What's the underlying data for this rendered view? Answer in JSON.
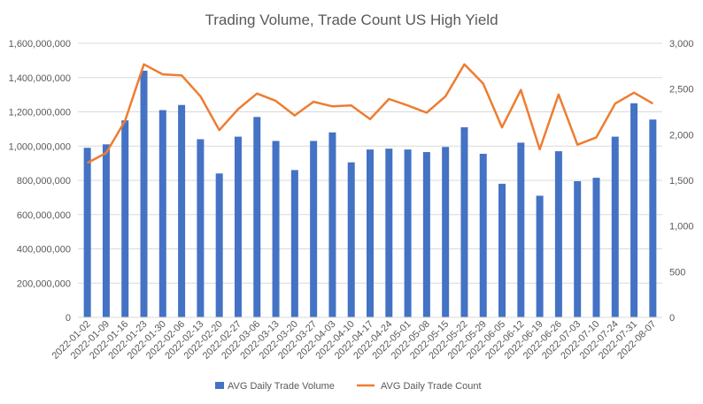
{
  "chart_data": {
    "type": "bar+line",
    "title": "Trading Volume, Trade Count US High Yield",
    "categories": [
      "2022-01-02",
      "2022-01-09",
      "2022-01-16",
      "2022-01-23",
      "2022-01-30",
      "2022-02-06",
      "2022-02-13",
      "2022-02-20",
      "2022-02-27",
      "2022-03-06",
      "2022-03-13",
      "2022-03-20",
      "2022-03-27",
      "2022-04-03",
      "2022-04-10",
      "2022-04-17",
      "2022-04-24",
      "2022-05-01",
      "2022-05-08",
      "2022-05-15",
      "2022-05-22",
      "2022-05-29",
      "2022-06-05",
      "2022-06-12",
      "2022-06-19",
      "2022-06-26",
      "2022-07-03",
      "2022-07-10",
      "2022-07-24",
      "2022-07-31",
      "2022-08-07"
    ],
    "series": [
      {
        "name": "AVG Daily Trade Volume",
        "type": "bar",
        "axis": "left",
        "color": "#4472C4",
        "values": [
          990000000,
          1010000000,
          1150000000,
          1440000000,
          1210000000,
          1240000000,
          1040000000,
          840000000,
          1055000000,
          1170000000,
          1030000000,
          860000000,
          1030000000,
          1080000000,
          905000000,
          980000000,
          985000000,
          980000000,
          965000000,
          995000000,
          1110000000,
          955000000,
          780000000,
          1020000000,
          710000000,
          970000000,
          795000000,
          815000000,
          1055000000,
          1250000000,
          1155000000
        ]
      },
      {
        "name": "AVG Daily Trade Count",
        "type": "line",
        "axis": "right",
        "color": "#ED7D31",
        "values": [
          1690,
          1800,
          2150,
          2770,
          2660,
          2650,
          2420,
          2050,
          2280,
          2450,
          2370,
          2210,
          2360,
          2310,
          2320,
          2170,
          2390,
          2320,
          2240,
          2420,
          2770,
          2560,
          2080,
          2490,
          1840,
          2440,
          1890,
          1970,
          2340,
          2460,
          2340
        ]
      }
    ],
    "y_left": {
      "ylim": [
        0,
        1600000000
      ],
      "ticks": [
        "0",
        "200,000,000",
        "400,000,000",
        "600,000,000",
        "800,000,000",
        "1,000,000,000",
        "1,200,000,000",
        "1,400,000,000",
        "1,600,000,000"
      ]
    },
    "y_right": {
      "ylim": [
        0,
        3000
      ],
      "ticks": [
        "0",
        "500",
        "1,000",
        "1,500",
        "2,000",
        "2,500",
        "3,000"
      ]
    },
    "grid": true,
    "legend_position": "bottom"
  }
}
